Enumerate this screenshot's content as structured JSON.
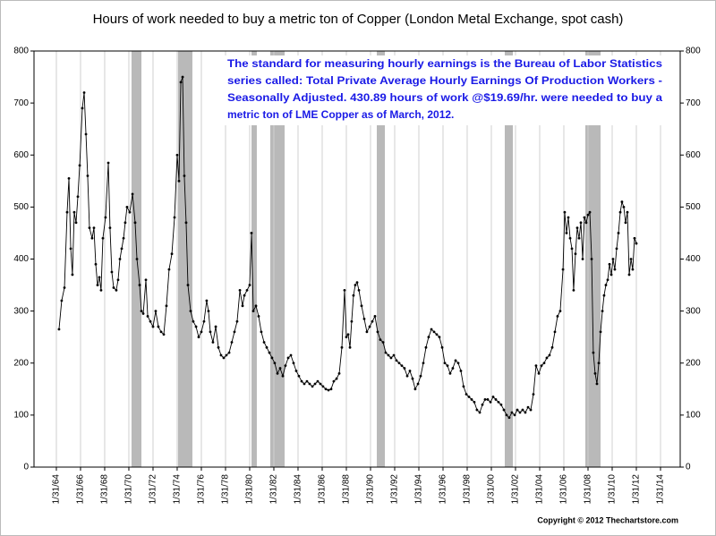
{
  "chart_data": {
    "type": "line",
    "title": "Hours of work needed to buy a metric ton of Copper (London Metal Exchange, spot cash)",
    "annotation": [
      "The standard for measuring hourly earnings is the Bureau of Labor Statistics",
      "series called:  Total Private Average Hourly Earnings Of Production Workers -",
      "Seasonally Adjusted.  430.89 hours of work @$19.69/hr. were needed to buy a",
      "metric ton of LME Copper as of March, 2012."
    ],
    "credit": "Copyright © 2012 Thechartstore.com",
    "color": "#000000",
    "recession_color": "#b9b9b9",
    "grid": "x",
    "xlim": [
      1962.23,
      2015.71
    ],
    "ylim": [
      0,
      800
    ],
    "yticks": [
      0,
      100,
      200,
      300,
      400,
      500,
      600,
      700,
      800
    ],
    "xticks": [
      {
        "value": 1964.08,
        "label": "1/31/64"
      },
      {
        "value": 1966.08,
        "label": "1/31/66"
      },
      {
        "value": 1968.08,
        "label": "1/31/68"
      },
      {
        "value": 1970.08,
        "label": "1/31/70"
      },
      {
        "value": 1972.08,
        "label": "1/31/72"
      },
      {
        "value": 1974.08,
        "label": "1/31/74"
      },
      {
        "value": 1976.08,
        "label": "1/31/76"
      },
      {
        "value": 1978.08,
        "label": "1/31/78"
      },
      {
        "value": 1980.08,
        "label": "1/31/80"
      },
      {
        "value": 1982.08,
        "label": "1/31/82"
      },
      {
        "value": 1984.08,
        "label": "1/31/84"
      },
      {
        "value": 1986.08,
        "label": "1/31/86"
      },
      {
        "value": 1988.08,
        "label": "1/31/88"
      },
      {
        "value": 1990.08,
        "label": "1/31/90"
      },
      {
        "value": 1992.08,
        "label": "1/31/92"
      },
      {
        "value": 1994.08,
        "label": "1/31/94"
      },
      {
        "value": 1996.08,
        "label": "1/31/96"
      },
      {
        "value": 1998.08,
        "label": "1/31/98"
      },
      {
        "value": 2000.08,
        "label": "1/31/00"
      },
      {
        "value": 2002.08,
        "label": "1/31/02"
      },
      {
        "value": 2004.08,
        "label": "1/31/04"
      },
      {
        "value": 2006.08,
        "label": "1/31/06"
      },
      {
        "value": 2008.08,
        "label": "1/31/08"
      },
      {
        "value": 2010.08,
        "label": "1/31/10"
      },
      {
        "value": 2012.08,
        "label": "1/31/12"
      },
      {
        "value": 2014.08,
        "label": "1/31/14"
      }
    ],
    "recessions": [
      [
        1970.3,
        1971.12
      ],
      [
        1974.15,
        1975.34
      ],
      [
        1980.23,
        1980.67
      ],
      [
        1981.78,
        1982.97
      ],
      [
        1990.6,
        1991.27
      ],
      [
        2001.19,
        2001.86
      ],
      [
        2007.86,
        2009.12
      ]
    ],
    "x": [
      1964.3,
      1964.52,
      1964.75,
      1964.97,
      1965.12,
      1965.27,
      1965.41,
      1965.56,
      1965.71,
      1965.86,
      1966.01,
      1966.23,
      1966.38,
      1966.53,
      1966.67,
      1966.82,
      1967.04,
      1967.19,
      1967.34,
      1967.49,
      1967.64,
      1967.78,
      1967.93,
      1968.15,
      1968.38,
      1968.52,
      1968.67,
      1968.82,
      1969.04,
      1969.19,
      1969.34,
      1969.49,
      1969.64,
      1969.78,
      1969.93,
      1970.15,
      1970.38,
      1970.6,
      1970.75,
      1970.97,
      1971.12,
      1971.27,
      1971.49,
      1971.64,
      1971.86,
      1972.08,
      1972.3,
      1972.52,
      1972.75,
      1972.97,
      1973.19,
      1973.41,
      1973.64,
      1973.86,
      1974.08,
      1974.23,
      1974.38,
      1974.53,
      1974.67,
      1974.82,
      1974.97,
      1975.19,
      1975.41,
      1975.64,
      1975.86,
      1976.08,
      1976.3,
      1976.52,
      1976.67,
      1976.82,
      1977.04,
      1977.27,
      1977.49,
      1977.71,
      1977.93,
      1978.15,
      1978.38,
      1978.6,
      1978.82,
      1979.04,
      1979.27,
      1979.49,
      1979.64,
      1979.86,
      1980.08,
      1980.23,
      1980.38,
      1980.6,
      1980.82,
      1981.04,
      1981.27,
      1981.49,
      1981.71,
      1981.93,
      1982.15,
      1982.38,
      1982.6,
      1982.82,
      1983.04,
      1983.27,
      1983.49,
      1983.71,
      1983.93,
      1984.15,
      1984.38,
      1984.6,
      1984.82,
      1985.04,
      1985.27,
      1985.49,
      1985.71,
      1985.93,
      1986.15,
      1986.38,
      1986.6,
      1986.82,
      1987.04,
      1987.27,
      1987.49,
      1987.71,
      1987.93,
      1988.08,
      1988.23,
      1988.38,
      1988.52,
      1988.67,
      1988.82,
      1988.97,
      1989.12,
      1989.34,
      1989.56,
      1989.78,
      1990.01,
      1990.23,
      1990.45,
      1990.67,
      1990.89,
      1991.12,
      1991.34,
      1991.56,
      1991.78,
      1992.01,
      1992.23,
      1992.45,
      1992.67,
      1992.89,
      1993.12,
      1993.34,
      1993.56,
      1993.78,
      1994.01,
      1994.23,
      1994.45,
      1994.67,
      1994.89,
      1995.12,
      1995.34,
      1995.56,
      1995.78,
      1996.01,
      1996.23,
      1996.45,
      1996.67,
      1996.89,
      1997.12,
      1997.34,
      1997.56,
      1997.78,
      1998.01,
      1998.23,
      1998.45,
      1998.67,
      1998.89,
      1999.12,
      1999.34,
      1999.56,
      1999.78,
      2000.01,
      2000.23,
      2000.45,
      2000.67,
      2000.89,
      2001.12,
      2001.34,
      2001.56,
      2001.78,
      2002.01,
      2002.23,
      2002.45,
      2002.67,
      2002.89,
      2003.12,
      2003.34,
      2003.56,
      2003.78,
      2004.01,
      2004.23,
      2004.45,
      2004.67,
      2004.89,
      2005.12,
      2005.34,
      2005.56,
      2005.78,
      2006.01,
      2006.15,
      2006.3,
      2006.45,
      2006.6,
      2006.75,
      2006.89,
      2007.04,
      2007.19,
      2007.34,
      2007.49,
      2007.64,
      2007.78,
      2007.93,
      2008.08,
      2008.23,
      2008.38,
      2008.52,
      2008.67,
      2008.82,
      2008.97,
      2009.12,
      2009.27,
      2009.41,
      2009.56,
      2009.71,
      2009.86,
      2010.01,
      2010.15,
      2010.3,
      2010.45,
      2010.6,
      2010.75,
      2010.89,
      2011.04,
      2011.19,
      2011.34,
      2011.49,
      2011.64,
      2011.78,
      2011.93,
      2012.08
    ],
    "values": [
      265,
      320,
      345,
      490,
      555,
      420,
      370,
      490,
      470,
      520,
      580,
      690,
      720,
      640,
      560,
      460,
      440,
      460,
      390,
      350,
      365,
      340,
      440,
      480,
      585,
      460,
      375,
      345,
      340,
      360,
      400,
      420,
      440,
      470,
      500,
      490,
      525,
      470,
      400,
      350,
      300,
      295,
      360,
      290,
      280,
      270,
      300,
      270,
      260,
      255,
      310,
      380,
      410,
      480,
      600,
      550,
      740,
      750,
      560,
      470,
      350,
      300,
      280,
      270,
      250,
      260,
      280,
      320,
      300,
      260,
      240,
      270,
      230,
      215,
      210,
      215,
      220,
      240,
      260,
      280,
      340,
      310,
      330,
      340,
      350,
      450,
      300,
      310,
      290,
      260,
      240,
      230,
      220,
      210,
      200,
      180,
      190,
      175,
      195,
      210,
      215,
      200,
      185,
      175,
      165,
      160,
      165,
      160,
      155,
      160,
      165,
      160,
      155,
      150,
      148,
      150,
      165,
      170,
      180,
      230,
      340,
      250,
      255,
      230,
      280,
      330,
      350,
      355,
      340,
      310,
      285,
      260,
      270,
      280,
      290,
      260,
      245,
      240,
      220,
      215,
      210,
      215,
      205,
      200,
      195,
      190,
      175,
      185,
      170,
      150,
      160,
      175,
      200,
      230,
      250,
      265,
      260,
      255,
      250,
      230,
      200,
      195,
      180,
      190,
      205,
      200,
      185,
      155,
      140,
      135,
      130,
      125,
      110,
      105,
      120,
      130,
      130,
      125,
      135,
      130,
      125,
      120,
      110,
      100,
      95,
      105,
      100,
      110,
      105,
      110,
      105,
      115,
      110,
      140,
      195,
      180,
      195,
      200,
      210,
      215,
      230,
      260,
      290,
      300,
      380,
      490,
      450,
      480,
      440,
      420,
      340,
      410,
      460,
      440,
      470,
      400,
      480,
      470,
      485,
      490,
      400,
      220,
      180,
      160,
      200,
      260,
      300,
      330,
      350,
      360,
      390,
      370,
      400,
      380,
      420,
      450,
      490,
      510,
      500,
      470,
      490,
      370,
      400,
      380,
      440,
      430
    ]
  }
}
